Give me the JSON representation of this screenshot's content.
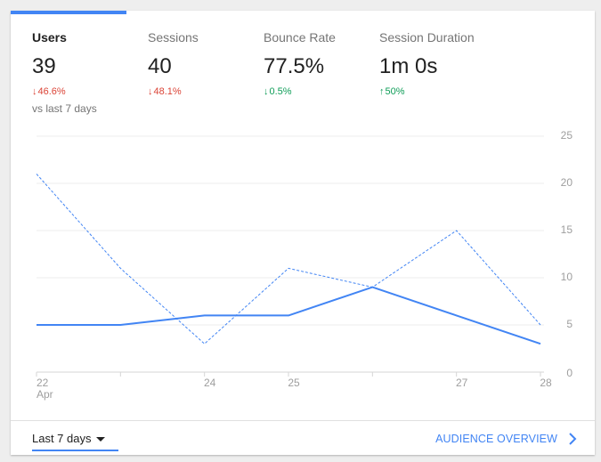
{
  "metrics": [
    {
      "name": "Users",
      "value": "39",
      "change": "46.6%",
      "direction": "down",
      "active": true
    },
    {
      "name": "Sessions",
      "value": "40",
      "change": "48.1%",
      "direction": "down",
      "active": false
    },
    {
      "name": "Bounce Rate",
      "value": "77.5%",
      "change": "0.5%",
      "direction": "down",
      "active": false
    },
    {
      "name": "Session Duration",
      "value": "1m 0s",
      "change": "50%",
      "direction": "up",
      "active": false
    }
  ],
  "comparison_label": "vs last 7 days",
  "colors": {
    "accent": "#4285f4",
    "down": "#db4437",
    "up": "#0f9d58"
  },
  "chart_data": {
    "type": "line",
    "x": [
      22,
      23,
      24,
      25,
      26,
      27,
      28
    ],
    "x_tick_labels": [
      "22",
      "",
      "24",
      "25",
      "",
      "27",
      "28"
    ],
    "x_sublabel": "Apr",
    "series": [
      {
        "style": "solid",
        "values": [
          5,
          5,
          6,
          6,
          9,
          6,
          3
        ]
      },
      {
        "style": "dashed",
        "values": [
          21,
          11,
          3,
          11,
          9,
          15,
          5
        ]
      }
    ],
    "y_ticks": [
      0,
      5,
      10,
      15,
      20,
      25
    ],
    "ylim": [
      0,
      25
    ],
    "y_axis_side": "right",
    "grid": true
  },
  "footer": {
    "range_label": "Last 7 days",
    "link_label": "AUDIENCE OVERVIEW"
  }
}
